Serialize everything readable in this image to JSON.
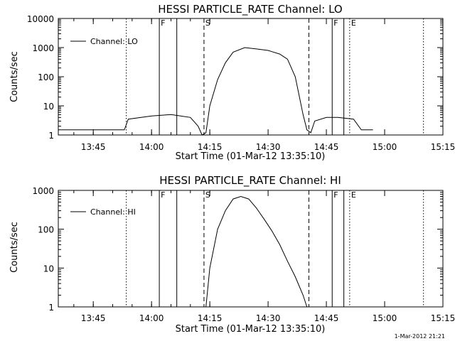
{
  "charts": [
    {
      "type": "line",
      "title": "HESSI PARTICLE_RATE Channel: LO",
      "legend": "Channel: LO",
      "legend_position": "top-left",
      "xlabel": "Start Time (01-Mar-12 13:35:10)",
      "ylabel": "Counts/sec",
      "yscale": "log",
      "ylim": [
        1,
        10000
      ],
      "ytick_labels": [
        "1",
        "10",
        "100",
        "1000",
        "10000"
      ],
      "xlim_minutes": [
        13.6,
        15.25
      ],
      "xtick_labels": [
        "13:45",
        "14:00",
        "14:15",
        "14:30",
        "14:45",
        "15:00",
        "15:15"
      ],
      "flags": [
        {
          "label": "F",
          "style": "solid",
          "x": "14:02"
        },
        {
          "label": "",
          "style": "solid",
          "x": "14:06.5"
        },
        {
          "label": "S",
          "style": "dashed",
          "x": "14:13.5"
        },
        {
          "label": "",
          "style": "dashed",
          "x": "14:40.5"
        },
        {
          "label": "F",
          "style": "solid",
          "x": "14:46.5"
        },
        {
          "label": "",
          "style": "solid",
          "x": "14:49.5"
        },
        {
          "label": "E",
          "style": "dotted",
          "x": "14:51"
        },
        {
          "label": "",
          "style": "dotted",
          "x": "13:53.5"
        },
        {
          "label": "",
          "style": "dotted",
          "x": "15:10"
        }
      ],
      "series": [
        {
          "name": "Channel: LO",
          "points": [
            [
              "13:36",
              1.5
            ],
            [
              "13:45",
              1.5
            ],
            [
              "13:53",
              1.5
            ],
            [
              "13:54",
              3.5
            ],
            [
              "14:00",
              4.5
            ],
            [
              "14:05",
              5.0
            ],
            [
              "14:10",
              4.0
            ],
            [
              "14:12",
              2.0
            ],
            [
              "14:13",
              1.0
            ],
            [
              "14:14",
              1.2
            ],
            [
              "14:15",
              10
            ],
            [
              "14:17",
              80
            ],
            [
              "14:19",
              300
            ],
            [
              "14:21",
              700
            ],
            [
              "14:24",
              1000
            ],
            [
              "14:27",
              900
            ],
            [
              "14:30",
              800
            ],
            [
              "14:33",
              600
            ],
            [
              "14:35",
              400
            ],
            [
              "14:37",
              100
            ],
            [
              "14:39",
              5
            ],
            [
              "14:40",
              1.5
            ],
            [
              "14:41",
              1.2
            ],
            [
              "14:42",
              3.0
            ],
            [
              "14:45",
              4.0
            ],
            [
              "14:48",
              4.0
            ],
            [
              "14:52",
              3.5
            ],
            [
              "14:54",
              1.5
            ],
            [
              "14:57",
              1.5
            ]
          ]
        }
      ]
    },
    {
      "type": "line",
      "title": "HESSI PARTICLE_RATE Channel: HI",
      "legend": "Channel: HI",
      "legend_position": "top-left",
      "xlabel": "Start Time (01-Mar-12 13:35:10)",
      "ylabel": "Counts/sec",
      "yscale": "log",
      "ylim": [
        1,
        1000
      ],
      "ytick_labels": [
        "1",
        "10",
        "100",
        "1000"
      ],
      "xlim_minutes": [
        13.6,
        15.25
      ],
      "xtick_labels": [
        "13:45",
        "14:00",
        "14:15",
        "14:30",
        "14:45",
        "15:00",
        "15:15"
      ],
      "flags": [
        {
          "label": "F",
          "style": "solid",
          "x": "14:02"
        },
        {
          "label": "",
          "style": "solid",
          "x": "14:06.5"
        },
        {
          "label": "S",
          "style": "dashed",
          "x": "14:13.5"
        },
        {
          "label": "",
          "style": "dashed",
          "x": "14:40.5"
        },
        {
          "label": "F",
          "style": "solid",
          "x": "14:46.5"
        },
        {
          "label": "",
          "style": "solid",
          "x": "14:49.5"
        },
        {
          "label": "E",
          "style": "dotted",
          "x": "14:51"
        },
        {
          "label": "",
          "style": "dotted",
          "x": "13:53.5"
        },
        {
          "label": "",
          "style": "dotted",
          "x": "15:10"
        }
      ],
      "series": [
        {
          "name": "Channel: HI",
          "points": [
            [
              "14:14",
              1.0
            ],
            [
              "14:15",
              10
            ],
            [
              "14:17",
              100
            ],
            [
              "14:19",
              300
            ],
            [
              "14:21",
              600
            ],
            [
              "14:23",
              700
            ],
            [
              "14:25",
              600
            ],
            [
              "14:27",
              350
            ],
            [
              "14:29",
              180
            ],
            [
              "14:31",
              90
            ],
            [
              "14:33",
              40
            ],
            [
              "14:35",
              15
            ],
            [
              "14:37",
              6
            ],
            [
              "14:39",
              2
            ],
            [
              "14:40",
              1.0
            ]
          ]
        }
      ]
    }
  ],
  "footer_stamp": "1-Mar-2012 21:21"
}
